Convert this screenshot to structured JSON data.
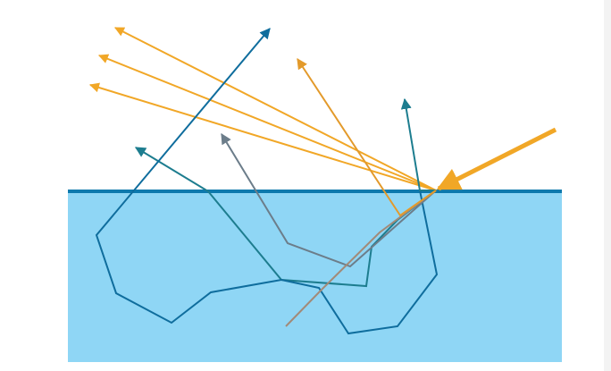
{
  "diagram": {
    "colors": {
      "background": "#ffffff",
      "medium_fill": "#8fd6f5",
      "surface_line": "#0d79ad",
      "incident_ray": "#f1a727",
      "reflected_ray": "#f1a727",
      "scatter_orange": "#e39a2b",
      "scatter_blue": "#0f6d9d",
      "scatter_teal": "#1d7d8f",
      "scatter_gray": "#6c7d8a",
      "scatter_brown": "#a28a78",
      "right_edge_shade": "#f3f3f3"
    },
    "components": [
      "medium-block",
      "surface-line",
      "incident-ray",
      "reflected-rays",
      "subsurface-scatter-paths"
    ]
  }
}
